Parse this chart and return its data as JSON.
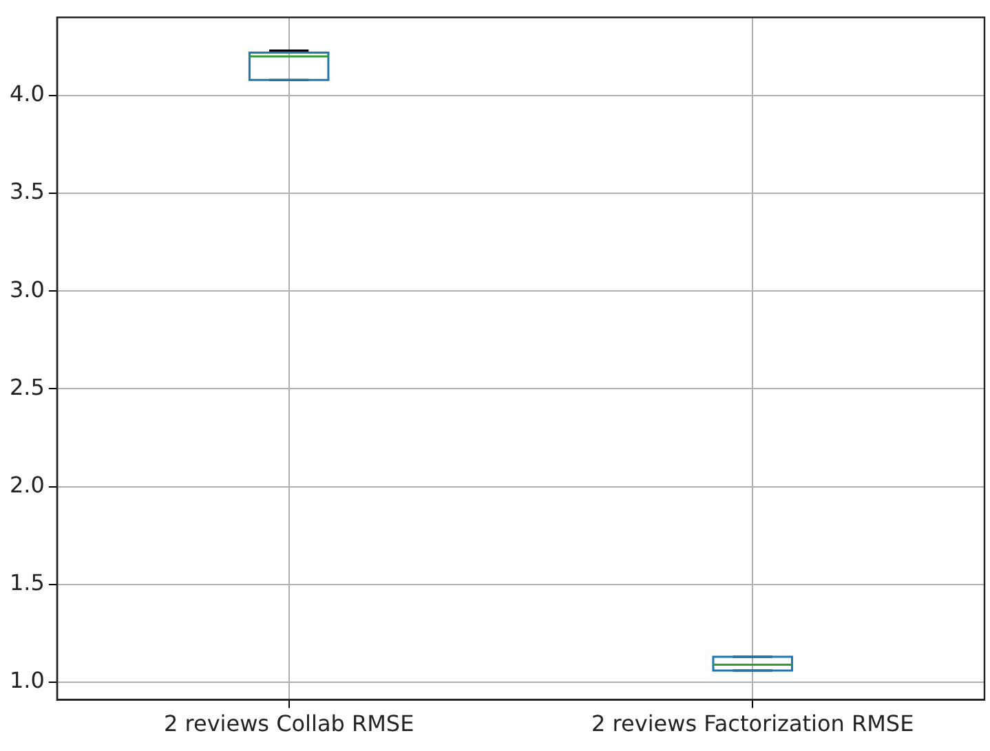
{
  "chart_data": {
    "type": "box",
    "categories": [
      "2 reviews Collab RMSE",
      "2 reviews Factorization RMSE"
    ],
    "boxes": [
      {
        "low": 4.08,
        "q1": 4.08,
        "median": 4.2,
        "q3": 4.22,
        "high": 4.23
      },
      {
        "low": 1.06,
        "q1": 1.06,
        "median": 1.09,
        "q3": 1.13,
        "high": 1.13
      }
    ],
    "color": "#1f77b4",
    "ylim": [
      0.91,
      4.4
    ],
    "yticks": [
      {
        "value": 1,
        "label": "1.0"
      },
      1.5,
      {
        "value": 2,
        "label": "2.0"
      },
      2.5,
      {
        "value": 3,
        "label": "3.0"
      },
      3.5,
      {
        "value": 4,
        "label": "4.0"
      }
    ],
    "grid": true,
    "legend": false
  }
}
